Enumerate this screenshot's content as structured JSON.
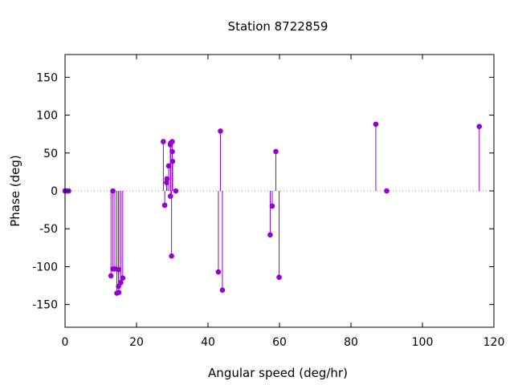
{
  "chart_data": {
    "type": "scatter",
    "style": "impulses with points",
    "title": "Station 8722859",
    "xlabel": "Angular speed (deg/hr)",
    "ylabel": "Phase (deg)",
    "xlim": [
      0,
      120
    ],
    "ylim": [
      -180,
      180
    ],
    "xticks": [
      0,
      20,
      40,
      60,
      80,
      100,
      120
    ],
    "yticks": [
      -150,
      -100,
      -50,
      0,
      50,
      100,
      150
    ],
    "zero_line": "dotted",
    "grid": false,
    "color": "#9400d3",
    "points": [
      {
        "x": 0.0,
        "y": 0
      },
      {
        "x": 0.04,
        "y": 0
      },
      {
        "x": 0.08,
        "y": 0
      },
      {
        "x": 0.5,
        "y": 0
      },
      {
        "x": 1.0,
        "y": 0
      },
      {
        "x": 12.85,
        "y": -112
      },
      {
        "x": 13.4,
        "y": 0
      },
      {
        "x": 13.4,
        "y": -103
      },
      {
        "x": 13.94,
        "y": -103
      },
      {
        "x": 14.5,
        "y": -135
      },
      {
        "x": 14.96,
        "y": -126
      },
      {
        "x": 15.0,
        "y": -104
      },
      {
        "x": 15.04,
        "y": -134
      },
      {
        "x": 15.6,
        "y": -121
      },
      {
        "x": 16.14,
        "y": -115
      },
      {
        "x": 27.5,
        "y": 65
      },
      {
        "x": 27.9,
        "y": -19
      },
      {
        "x": 28.4,
        "y": 11
      },
      {
        "x": 28.51,
        "y": 16
      },
      {
        "x": 28.99,
        "y": 33
      },
      {
        "x": 29.5,
        "y": -7
      },
      {
        "x": 29.46,
        "y": 61
      },
      {
        "x": 29.53,
        "y": 63
      },
      {
        "x": 29.8,
        "y": -86
      },
      {
        "x": 29.96,
        "y": 65
      },
      {
        "x": 30.0,
        "y": 52
      },
      {
        "x": 30.1,
        "y": 39
      },
      {
        "x": 31.0,
        "y": 0
      },
      {
        "x": 42.9,
        "y": -107
      },
      {
        "x": 43.48,
        "y": 79
      },
      {
        "x": 44.03,
        "y": -131
      },
      {
        "x": 57.4,
        "y": -58
      },
      {
        "x": 57.97,
        "y": -20
      },
      {
        "x": 58.98,
        "y": 52
      },
      {
        "x": 59.9,
        "y": -114
      },
      {
        "x": 86.95,
        "y": 88
      },
      {
        "x": 90.0,
        "y": 0
      },
      {
        "x": 115.9,
        "y": 85
      }
    ]
  }
}
